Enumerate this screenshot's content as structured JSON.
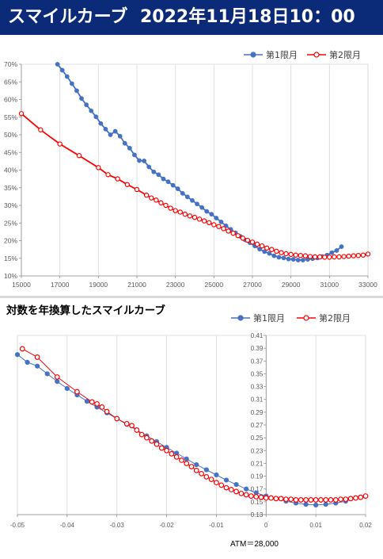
{
  "header": {
    "title": "スマイルカーブ",
    "datetime": "2022年11月18日10：00"
  },
  "chart_data": [
    {
      "type": "line",
      "title": "",
      "xlabel": "",
      "ylabel": "",
      "xlim": [
        15000,
        33000
      ],
      "ylim": [
        0.1,
        0.7
      ],
      "x_ticks": [
        15000,
        17000,
        19000,
        21000,
        23000,
        25000,
        27000,
        29000,
        31000,
        33000
      ],
      "x_tick_labels": [
        "15000",
        "17000",
        "19000",
        "21000",
        "23000",
        "25000",
        "27000",
        "29000",
        "31000",
        "33000"
      ],
      "y_ticks": [
        0.1,
        0.15,
        0.2,
        0.25,
        0.3,
        0.35,
        0.4,
        0.45,
        0.5,
        0.55,
        0.6,
        0.65,
        0.7
      ],
      "y_tick_labels": [
        "10%",
        "15%",
        "20%",
        "25%",
        "30%",
        "35%",
        "40%",
        "45%",
        "50%",
        "55%",
        "60%",
        "65%",
        "70%"
      ],
      "grid": "vertical",
      "legend_position": "top-right",
      "series": [
        {
          "name": "第1限月",
          "color": "#4472c4",
          "points": [
            [
              16875,
              0.7
            ],
            [
              17125,
              0.683
            ],
            [
              17375,
              0.665
            ],
            [
              17625,
              0.645
            ],
            [
              17875,
              0.625
            ],
            [
              18125,
              0.603
            ],
            [
              18375,
              0.585
            ],
            [
              18625,
              0.568
            ],
            [
              18875,
              0.551
            ],
            [
              19125,
              0.532
            ],
            [
              19375,
              0.516
            ],
            [
              19625,
              0.5
            ],
            [
              19875,
              0.51
            ],
            [
              20125,
              0.496
            ],
            [
              20375,
              0.476
            ],
            [
              20625,
              0.462
            ],
            [
              20875,
              0.443
            ],
            [
              21125,
              0.427
            ],
            [
              21375,
              0.426
            ],
            [
              21625,
              0.409
            ],
            [
              21875,
              0.395
            ],
            [
              22125,
              0.387
            ],
            [
              22375,
              0.375
            ],
            [
              22625,
              0.367
            ],
            [
              22875,
              0.357
            ],
            [
              23125,
              0.347
            ],
            [
              23375,
              0.334
            ],
            [
              23625,
              0.324
            ],
            [
              23875,
              0.314
            ],
            [
              24125,
              0.304
            ],
            [
              24375,
              0.294
            ],
            [
              24625,
              0.283
            ],
            [
              24875,
              0.275
            ],
            [
              25125,
              0.264
            ],
            [
              25375,
              0.253
            ],
            [
              25625,
              0.242
            ],
            [
              25875,
              0.232
            ],
            [
              26125,
              0.222
            ],
            [
              26375,
              0.212
            ],
            [
              26625,
              0.202
            ],
            [
              26875,
              0.194
            ],
            [
              27125,
              0.185
            ],
            [
              27375,
              0.176
            ],
            [
              27625,
              0.169
            ],
            [
              27875,
              0.164
            ],
            [
              28125,
              0.157
            ],
            [
              28375,
              0.153
            ],
            [
              28625,
              0.151
            ],
            [
              28875,
              0.148
            ],
            [
              29125,
              0.147
            ],
            [
              29375,
              0.145
            ],
            [
              29625,
              0.145
            ],
            [
              29875,
              0.147
            ],
            [
              30125,
              0.149
            ],
            [
              30375,
              0.151
            ],
            [
              30625,
              0.155
            ],
            [
              30875,
              0.159
            ],
            [
              31125,
              0.166
            ],
            [
              31375,
              0.172
            ],
            [
              31625,
              0.183
            ]
          ]
        },
        {
          "name": "第2限月",
          "color": "#ff0000",
          "points": [
            [
              15000,
              0.56
            ],
            [
              16000,
              0.514
            ],
            [
              17000,
              0.474
            ],
            [
              18000,
              0.441
            ],
            [
              19000,
              0.407
            ],
            [
              19500,
              0.387
            ],
            [
              20000,
              0.375
            ],
            [
              20500,
              0.359
            ],
            [
              21000,
              0.345
            ],
            [
              21500,
              0.329
            ],
            [
              21750,
              0.321
            ],
            [
              22000,
              0.315
            ],
            [
              22250,
              0.307
            ],
            [
              22500,
              0.3
            ],
            [
              22750,
              0.292
            ],
            [
              23000,
              0.285
            ],
            [
              23250,
              0.281
            ],
            [
              23500,
              0.275
            ],
            [
              23750,
              0.27
            ],
            [
              24000,
              0.266
            ],
            [
              24250,
              0.261
            ],
            [
              24500,
              0.256
            ],
            [
              24750,
              0.251
            ],
            [
              25000,
              0.245
            ],
            [
              25250,
              0.24
            ],
            [
              25500,
              0.234
            ],
            [
              25750,
              0.227
            ],
            [
              26000,
              0.221
            ],
            [
              26250,
              0.214
            ],
            [
              26500,
              0.207
            ],
            [
              26750,
              0.201
            ],
            [
              27000,
              0.196
            ],
            [
              27250,
              0.19
            ],
            [
              27500,
              0.185
            ],
            [
              27750,
              0.179
            ],
            [
              28000,
              0.175
            ],
            [
              28250,
              0.17
            ],
            [
              28500,
              0.166
            ],
            [
              28750,
              0.163
            ],
            [
              29000,
              0.161
            ],
            [
              29250,
              0.159
            ],
            [
              29500,
              0.158
            ],
            [
              29750,
              0.157
            ],
            [
              30000,
              0.155
            ],
            [
              30250,
              0.154
            ],
            [
              30500,
              0.154
            ],
            [
              30750,
              0.153
            ],
            [
              31000,
              0.153
            ],
            [
              31250,
              0.154
            ],
            [
              31500,
              0.154
            ],
            [
              31750,
              0.155
            ],
            [
              32000,
              0.156
            ],
            [
              32250,
              0.157
            ],
            [
              32500,
              0.158
            ],
            [
              32750,
              0.159
            ],
            [
              33000,
              0.162
            ]
          ]
        }
      ]
    },
    {
      "type": "line",
      "title": "対数を年換算したスマイルカーブ",
      "xlabel": "ATM＝28,000",
      "ylabel": "",
      "xlim": [
        -0.05,
        0.02
      ],
      "ylim": [
        0.13,
        0.41
      ],
      "x_ticks": [
        -0.05,
        -0.04,
        -0.03,
        -0.02,
        -0.01,
        0,
        0.01,
        0.02
      ],
      "x_tick_labels": [
        "-0.05",
        "-0.04",
        "-0.03",
        "-0.02",
        "-0.01",
        "0",
        "0.01",
        "0.02"
      ],
      "y_ticks": [
        0.13,
        0.15,
        0.17,
        0.19,
        0.21,
        0.23,
        0.25,
        0.27,
        0.29,
        0.31,
        0.33,
        0.35,
        0.37,
        0.39,
        0.41
      ],
      "y_tick_labels": [
        "0.13",
        "0.15",
        "0.17",
        "0.19",
        "0.21",
        "0.23",
        "0.25",
        "0.27",
        "0.29",
        "0.31",
        "0.33",
        "0.35",
        "0.37",
        "0.39",
        "0.41"
      ],
      "grid": "vertical",
      "legend_position": "top-right",
      "series": [
        {
          "name": "第1限月",
          "color": "#4472c4",
          "points": [
            [
              -0.05,
              0.38
            ],
            [
              -0.048,
              0.368
            ],
            [
              -0.046,
              0.362
            ],
            [
              -0.044,
              0.35
            ],
            [
              -0.042,
              0.338
            ],
            [
              -0.04,
              0.327
            ],
            [
              -0.038,
              0.317
            ],
            [
              -0.036,
              0.307
            ],
            [
              -0.034,
              0.298
            ],
            [
              -0.032,
              0.289
            ],
            [
              -0.03,
              0.28
            ],
            [
              -0.028,
              0.271
            ],
            [
              -0.026,
              0.262
            ],
            [
              -0.024,
              0.253
            ],
            [
              -0.022,
              0.244
            ],
            [
              -0.02,
              0.235
            ],
            [
              -0.018,
              0.226
            ],
            [
              -0.016,
              0.217
            ],
            [
              -0.014,
              0.208
            ],
            [
              -0.012,
              0.2
            ],
            [
              -0.01,
              0.192
            ],
            [
              -0.008,
              0.184
            ],
            [
              -0.006,
              0.177
            ],
            [
              -0.004,
              0.17
            ],
            [
              -0.002,
              0.164
            ],
            [
              0.0,
              0.159
            ],
            [
              0.002,
              0.155
            ],
            [
              0.004,
              0.151
            ],
            [
              0.006,
              0.148
            ],
            [
              0.008,
              0.146
            ],
            [
              0.01,
              0.145
            ],
            [
              0.012,
              0.146
            ],
            [
              0.014,
              0.148
            ],
            [
              0.016,
              0.151
            ],
            [
              0.018,
              0.156
            ]
          ]
        },
        {
          "name": "第2限月",
          "color": "#ff0000",
          "points": [
            [
              -0.049,
              0.389
            ],
            [
              -0.046,
              0.376
            ],
            [
              -0.042,
              0.345
            ],
            [
              -0.038,
              0.322
            ],
            [
              -0.035,
              0.306
            ],
            [
              -0.034,
              0.303
            ],
            [
              -0.033,
              0.298
            ],
            [
              -0.032,
              0.291
            ],
            [
              -0.03,
              0.28
            ],
            [
              -0.028,
              0.272
            ],
            [
              -0.027,
              0.269
            ],
            [
              -0.026,
              0.262
            ],
            [
              -0.025,
              0.255
            ],
            [
              -0.024,
              0.25
            ],
            [
              -0.023,
              0.245
            ],
            [
              -0.022,
              0.24
            ],
            [
              -0.021,
              0.234
            ],
            [
              -0.02,
              0.23
            ],
            [
              -0.019,
              0.225
            ],
            [
              -0.018,
              0.22
            ],
            [
              -0.017,
              0.215
            ],
            [
              -0.016,
              0.21
            ],
            [
              -0.015,
              0.205
            ],
            [
              -0.014,
              0.199
            ],
            [
              -0.013,
              0.194
            ],
            [
              -0.012,
              0.189
            ],
            [
              -0.011,
              0.185
            ],
            [
              -0.01,
              0.18
            ],
            [
              -0.009,
              0.176
            ],
            [
              -0.008,
              0.172
            ],
            [
              -0.007,
              0.169
            ],
            [
              -0.006,
              0.166
            ],
            [
              -0.005,
              0.163
            ],
            [
              -0.004,
              0.161
            ],
            [
              -0.003,
              0.159
            ],
            [
              -0.002,
              0.158
            ],
            [
              -0.001,
              0.157
            ],
            [
              0.0,
              0.156
            ],
            [
              0.001,
              0.156
            ],
            [
              0.002,
              0.155
            ],
            [
              0.003,
              0.155
            ],
            [
              0.004,
              0.154
            ],
            [
              0.005,
              0.154
            ],
            [
              0.006,
              0.153
            ],
            [
              0.007,
              0.153
            ],
            [
              0.008,
              0.153
            ],
            [
              0.009,
              0.153
            ],
            [
              0.01,
              0.153
            ],
            [
              0.011,
              0.153
            ],
            [
              0.012,
              0.153
            ],
            [
              0.013,
              0.153
            ],
            [
              0.014,
              0.153
            ],
            [
              0.015,
              0.154
            ],
            [
              0.016,
              0.154
            ],
            [
              0.017,
              0.155
            ],
            [
              0.018,
              0.156
            ],
            [
              0.019,
              0.157
            ],
            [
              0.02,
              0.159
            ]
          ]
        }
      ]
    }
  ]
}
